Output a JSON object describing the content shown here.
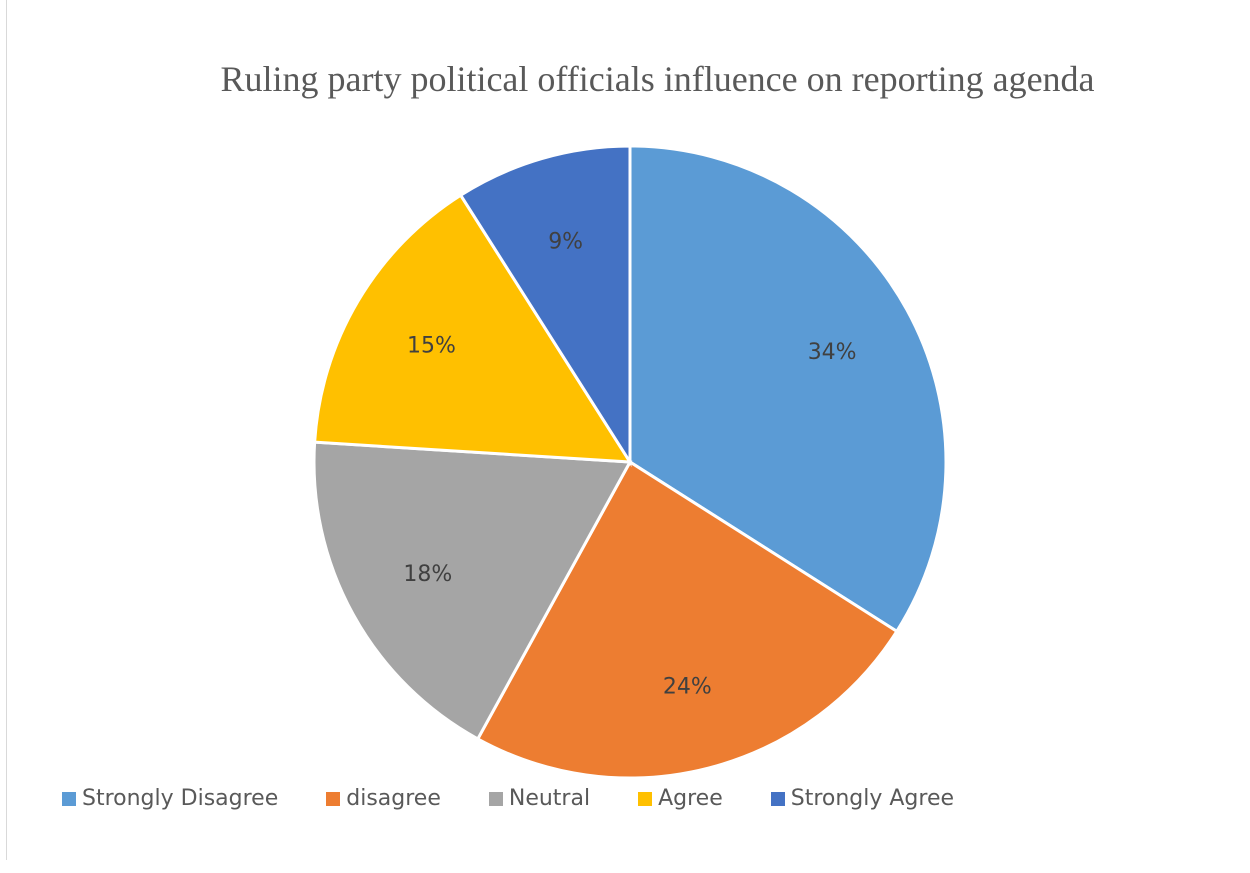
{
  "chart_data": {
    "type": "pie",
    "title": "Ruling party political officials influence on reporting agenda",
    "categories": [
      "Strongly Disagree",
      "disagree",
      "Neutral",
      "Agree",
      "Strongly Agree"
    ],
    "values": [
      34,
      24,
      18,
      15,
      9
    ],
    "labels": [
      "34%",
      "24%",
      "18%",
      "15%",
      "9%"
    ],
    "colors": [
      "#5B9BD5",
      "#ED7D31",
      "#A5A5A5",
      "#FFC000",
      "#4472C4"
    ],
    "legend_position": "bottom"
  }
}
